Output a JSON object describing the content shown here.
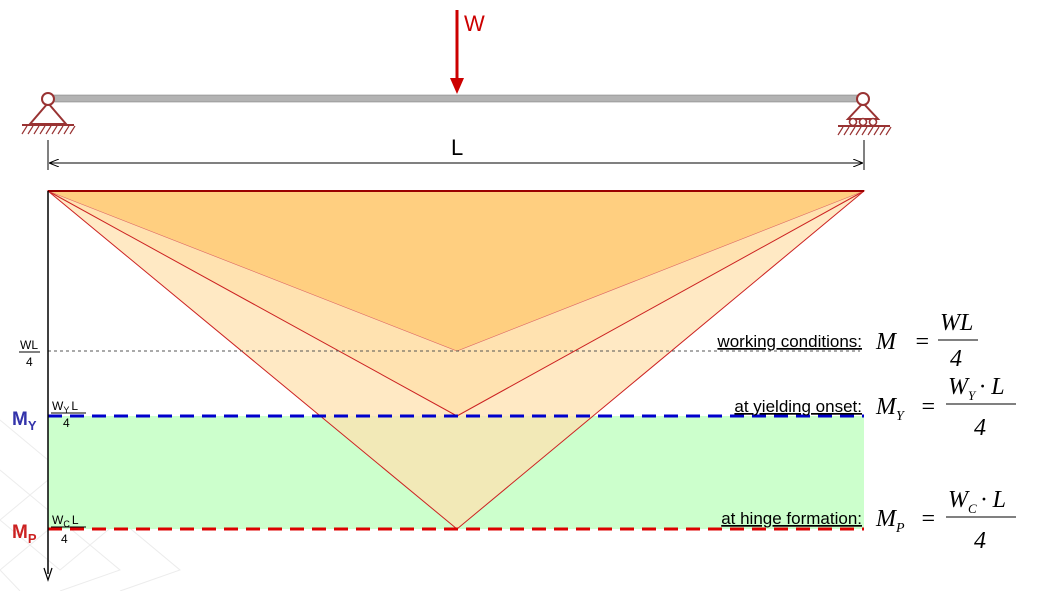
{
  "load": {
    "label": "W",
    "color": "#cc0000"
  },
  "span": {
    "label": "L"
  },
  "axis": {
    "wl_num": "WL",
    "wl_den": "4",
    "my_label": "M",
    "my_sub": "Y",
    "my_frac_num": "W",
    "my_frac_num_sub": "Y",
    "my_frac_num_tail": "L",
    "my_frac_den": "4",
    "mp_label": "M",
    "mp_sub": "P",
    "mp_frac_num": "W",
    "mp_frac_num_sub": "C",
    "mp_frac_num_tail": "L",
    "mp_frac_den": "4"
  },
  "conditions": [
    {
      "text": "working conditions:",
      "lhs": "M",
      "lhs_sub": "",
      "eq": "=",
      "num": "WL",
      "num_sub": "",
      "num_tail": "",
      "den": "4"
    },
    {
      "text": "at yielding onset:",
      "lhs": "M",
      "lhs_sub": "Y",
      "eq": "=",
      "num": "W",
      "num_sub": "Y",
      "num_tail": "· L",
      "den": "4"
    },
    {
      "text": "at hinge formation:",
      "lhs": "M",
      "lhs_sub": "P",
      "eq": "=",
      "num": "W",
      "num_sub": "C",
      "num_tail": "· L",
      "den": "4"
    }
  ],
  "colors": {
    "beam": "#b3b3b3",
    "support": "#993333",
    "orange_dark": "#ffcf80",
    "orange_light": "#ffe2b0",
    "green_band": "#ccffcc",
    "yield_line": "#0000cc",
    "plastic_line": "#dd0000",
    "diagram_edge": "#cc2222"
  }
}
